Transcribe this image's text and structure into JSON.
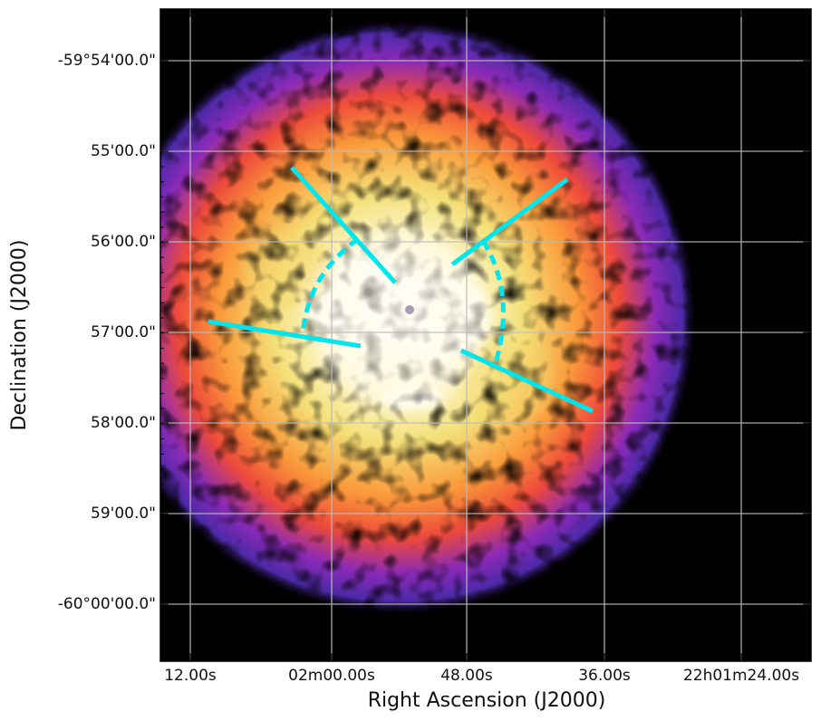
{
  "chart_data": {
    "type": "heatmap",
    "xlabel": "Right Ascension (J2000)",
    "ylabel": "Declination (J2000)",
    "x_ticks": [
      "12.00s",
      "02m00.00s",
      "48.00s",
      "36.00s",
      "22h01m24.00s"
    ],
    "y_ticks": [
      "-59°54'00.0\"",
      "55'00.0\"",
      "56'00.0\"",
      "57'00.0\"",
      "58'00.0\"",
      "59'00.0\"",
      "-60°00'00.0\""
    ],
    "grid": true,
    "colormap": "black-purple-orange-yellow-white",
    "overlay_color": "#00e5ee",
    "background_color": "#000000",
    "grid_color": "#bbbbbb"
  }
}
